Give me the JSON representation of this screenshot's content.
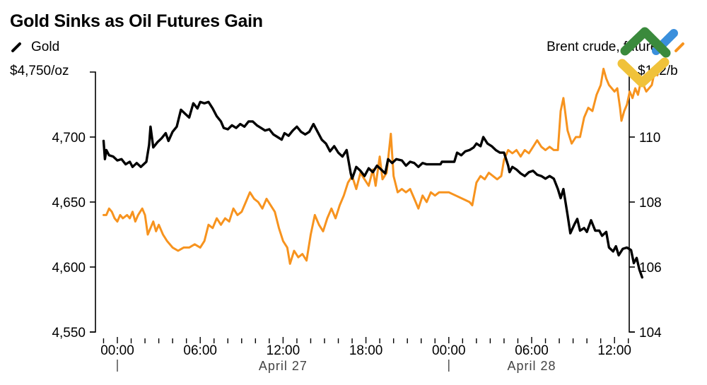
{
  "chart_data": {
    "type": "line",
    "title": "Gold Sinks as Oil Futures Gain",
    "xlabel": "",
    "legend_position": "top",
    "grid": false,
    "x_ticks": [
      {
        "label": "00:00",
        "hour": 0
      },
      {
        "label": "06:00",
        "hour": 6
      },
      {
        "label": "12:00",
        "hour": 12
      },
      {
        "label": "18:00",
        "hour": 18
      },
      {
        "label": "00:00",
        "hour": 24
      },
      {
        "label": "06:00",
        "hour": 30
      },
      {
        "label": "12:00",
        "hour": 36
      }
    ],
    "date_labels": [
      {
        "label": "April 27",
        "hour": 12
      },
      {
        "label": "April 28",
        "hour": 30
      }
    ],
    "date_separators": [
      0,
      24
    ],
    "x_range_hours": [
      -1.3,
      37.6
    ],
    "axes": {
      "left": {
        "label": "Gold",
        "unit_label": "$4,750/oz",
        "ylim": [
          4550,
          4750
        ],
        "ticks": [
          {
            "value": 4550,
            "label": "4,550"
          },
          {
            "value": 4600,
            "label": "4,600"
          },
          {
            "value": 4650,
            "label": "4,650"
          },
          {
            "value": 4700,
            "label": "4,700"
          }
        ]
      },
      "right": {
        "label": "Brent crude, futures",
        "unit_label": "$112/b",
        "ylim": [
          104,
          112
        ],
        "ticks": [
          {
            "value": 104,
            "label": "104"
          },
          {
            "value": 106,
            "label": "106"
          },
          {
            "value": 108,
            "label": "108"
          },
          {
            "value": 110,
            "label": "110"
          }
        ]
      }
    },
    "series": [
      {
        "name": "Gold",
        "axis": "left",
        "color": "#000000",
        "unit": "$/oz",
        "points": [
          [
            -1.0,
            4697
          ],
          [
            -0.9,
            4683
          ],
          [
            -0.8,
            4690
          ],
          [
            -0.6,
            4686
          ],
          [
            -0.3,
            4685
          ],
          [
            0.0,
            4682
          ],
          [
            0.3,
            4683
          ],
          [
            0.6,
            4679
          ],
          [
            0.9,
            4681
          ],
          [
            1.1,
            4677
          ],
          [
            1.4,
            4680
          ],
          [
            1.7,
            4677
          ],
          [
            1.9,
            4679
          ],
          [
            2.1,
            4681
          ],
          [
            2.3,
            4694
          ],
          [
            2.4,
            4708
          ],
          [
            2.6,
            4692
          ],
          [
            2.9,
            4696
          ],
          [
            3.2,
            4699
          ],
          [
            3.5,
            4703
          ],
          [
            3.7,
            4697
          ],
          [
            4.0,
            4704
          ],
          [
            4.3,
            4708
          ],
          [
            4.6,
            4721
          ],
          [
            4.9,
            4718
          ],
          [
            5.2,
            4715
          ],
          [
            5.5,
            4726
          ],
          [
            5.8,
            4722
          ],
          [
            6.0,
            4727
          ],
          [
            6.3,
            4726
          ],
          [
            6.6,
            4727
          ],
          [
            6.9,
            4722
          ],
          [
            7.2,
            4716
          ],
          [
            7.5,
            4712
          ],
          [
            7.7,
            4707
          ],
          [
            8.0,
            4706
          ],
          [
            8.3,
            4709
          ],
          [
            8.6,
            4707
          ],
          [
            8.9,
            4710
          ],
          [
            9.2,
            4708
          ],
          [
            9.5,
            4712
          ],
          [
            9.8,
            4712
          ],
          [
            10.1,
            4709
          ],
          [
            10.4,
            4707
          ],
          [
            10.7,
            4705
          ],
          [
            11.0,
            4706
          ],
          [
            11.3,
            4702
          ],
          [
            11.6,
            4700
          ],
          [
            11.9,
            4698
          ],
          [
            12.1,
            4703
          ],
          [
            12.4,
            4701
          ],
          [
            12.7,
            4705
          ],
          [
            13.0,
            4708
          ],
          [
            13.3,
            4704
          ],
          [
            13.6,
            4702
          ],
          [
            13.9,
            4704
          ],
          [
            14.2,
            4710
          ],
          [
            14.5,
            4704
          ],
          [
            14.8,
            4698
          ],
          [
            15.1,
            4695
          ],
          [
            15.4,
            4689
          ],
          [
            15.7,
            4693
          ],
          [
            16.0,
            4688
          ],
          [
            16.3,
            4685
          ],
          [
            16.6,
            4690
          ],
          [
            16.9,
            4672
          ],
          [
            17.0,
            4668
          ],
          [
            17.3,
            4677
          ],
          [
            17.6,
            4674
          ],
          [
            17.9,
            4670
          ],
          [
            18.2,
            4676
          ],
          [
            18.5,
            4673
          ],
          [
            18.8,
            4678
          ],
          [
            19.1,
            4675
          ],
          [
            19.4,
            4672
          ],
          [
            19.6,
            4683
          ],
          [
            19.9,
            4680
          ],
          [
            20.2,
            4683
          ],
          [
            20.6,
            4682
          ],
          [
            20.9,
            4678
          ],
          [
            21.2,
            4681
          ],
          [
            21.5,
            4680
          ],
          [
            21.8,
            4677
          ],
          [
            22.1,
            4680
          ],
          [
            22.4,
            4679
          ],
          [
            23.0,
            4679
          ],
          [
            23.4,
            4679
          ],
          [
            23.5,
            4681
          ],
          [
            24.0,
            4681
          ],
          [
            24.4,
            4681
          ],
          [
            24.6,
            4688
          ],
          [
            24.9,
            4686
          ],
          [
            25.2,
            4689
          ],
          [
            25.5,
            4690
          ],
          [
            25.8,
            4692
          ],
          [
            26.0,
            4695
          ],
          [
            26.3,
            4693
          ],
          [
            26.5,
            4700
          ],
          [
            26.8,
            4695
          ],
          [
            27.1,
            4693
          ],
          [
            27.4,
            4690
          ],
          [
            27.7,
            4688
          ],
          [
            28.0,
            4688
          ],
          [
            28.3,
            4678
          ],
          [
            28.4,
            4673
          ],
          [
            28.6,
            4677
          ],
          [
            28.9,
            4675
          ],
          [
            29.2,
            4672
          ],
          [
            29.5,
            4670
          ],
          [
            29.8,
            4673
          ],
          [
            30.1,
            4674
          ],
          [
            30.4,
            4671
          ],
          [
            30.7,
            4670
          ],
          [
            31.0,
            4668
          ],
          [
            31.3,
            4670
          ],
          [
            31.6,
            4668
          ],
          [
            31.9,
            4660
          ],
          [
            32.1,
            4653
          ],
          [
            32.3,
            4660
          ],
          [
            32.6,
            4640
          ],
          [
            32.8,
            4626
          ],
          [
            33.1,
            4633
          ],
          [
            33.3,
            4637
          ],
          [
            33.5,
            4628
          ],
          [
            33.8,
            4630
          ],
          [
            34.0,
            4627
          ],
          [
            34.3,
            4636
          ],
          [
            34.6,
            4628
          ],
          [
            34.9,
            4628
          ],
          [
            35.1,
            4624
          ],
          [
            35.4,
            4627
          ],
          [
            35.6,
            4615
          ],
          [
            35.9,
            4612
          ],
          [
            36.1,
            4616
          ],
          [
            36.3,
            4609
          ],
          [
            36.6,
            4614
          ],
          [
            36.9,
            4615
          ],
          [
            37.2,
            4613
          ],
          [
            37.4,
            4603
          ],
          [
            37.6,
            4607
          ],
          [
            37.8,
            4598
          ],
          [
            38.0,
            4592
          ]
        ]
      },
      {
        "name": "Brent crude, futures",
        "axis": "right",
        "color": "#f7931e",
        "unit": "$/b",
        "points": [
          [
            -1.0,
            107.6
          ],
          [
            -0.8,
            107.6
          ],
          [
            -0.6,
            107.8
          ],
          [
            -0.4,
            107.7
          ],
          [
            -0.2,
            107.5
          ],
          [
            0.0,
            107.4
          ],
          [
            0.2,
            107.6
          ],
          [
            0.4,
            107.5
          ],
          [
            0.7,
            107.6
          ],
          [
            0.9,
            107.5
          ],
          [
            1.1,
            107.7
          ],
          [
            1.3,
            107.4
          ],
          [
            1.5,
            107.6
          ],
          [
            1.8,
            107.8
          ],
          [
            2.0,
            107.6
          ],
          [
            2.2,
            107.0
          ],
          [
            2.4,
            107.2
          ],
          [
            2.6,
            107.4
          ],
          [
            2.8,
            107.1
          ],
          [
            3.0,
            107.3
          ],
          [
            3.3,
            107.0
          ],
          [
            3.6,
            106.8
          ],
          [
            4.0,
            106.6
          ],
          [
            4.4,
            106.5
          ],
          [
            4.8,
            106.6
          ],
          [
            5.2,
            106.6
          ],
          [
            5.6,
            106.7
          ],
          [
            6.0,
            106.6
          ],
          [
            6.3,
            106.8
          ],
          [
            6.6,
            107.3
          ],
          [
            6.9,
            107.2
          ],
          [
            7.2,
            107.5
          ],
          [
            7.5,
            107.3
          ],
          [
            7.8,
            107.5
          ],
          [
            8.1,
            107.4
          ],
          [
            8.4,
            107.8
          ],
          [
            8.7,
            107.6
          ],
          [
            9.0,
            107.7
          ],
          [
            9.3,
            108.0
          ],
          [
            9.6,
            108.3
          ],
          [
            9.9,
            108.1
          ],
          [
            10.2,
            108.0
          ],
          [
            10.5,
            107.8
          ],
          [
            10.8,
            108.1
          ],
          [
            11.1,
            107.9
          ],
          [
            11.4,
            107.7
          ],
          [
            11.7,
            107.2
          ],
          [
            12.0,
            106.8
          ],
          [
            12.3,
            106.6
          ],
          [
            12.5,
            106.1
          ],
          [
            12.8,
            106.5
          ],
          [
            13.1,
            106.3
          ],
          [
            13.4,
            106.4
          ],
          [
            13.7,
            106.2
          ],
          [
            14.0,
            107.0
          ],
          [
            14.3,
            107.6
          ],
          [
            14.6,
            107.3
          ],
          [
            14.9,
            107.1
          ],
          [
            15.2,
            107.5
          ],
          [
            15.5,
            107.8
          ],
          [
            15.8,
            107.5
          ],
          [
            16.1,
            107.9
          ],
          [
            16.4,
            108.2
          ],
          [
            16.7,
            108.6
          ],
          [
            17.0,
            108.8
          ],
          [
            17.3,
            108.4
          ],
          [
            17.6,
            108.9
          ],
          [
            17.9,
            108.7
          ],
          [
            18.2,
            108.5
          ],
          [
            18.5,
            109.0
          ],
          [
            18.7,
            108.5
          ],
          [
            19.0,
            109.4
          ],
          [
            19.2,
            108.7
          ],
          [
            19.5,
            108.9
          ],
          [
            19.8,
            110.1
          ],
          [
            20.0,
            108.8
          ],
          [
            20.3,
            108.3
          ],
          [
            20.6,
            108.4
          ],
          [
            20.9,
            108.3
          ],
          [
            21.2,
            108.4
          ],
          [
            21.5,
            108.1
          ],
          [
            21.8,
            107.8
          ],
          [
            22.1,
            108.2
          ],
          [
            22.4,
            108.0
          ],
          [
            22.7,
            108.3
          ],
          [
            23.0,
            108.2
          ],
          [
            23.3,
            108.3
          ],
          [
            23.6,
            108.3
          ],
          [
            24.0,
            108.3
          ],
          [
            24.5,
            108.2
          ],
          [
            25.0,
            108.1
          ],
          [
            25.5,
            108.0
          ],
          [
            25.7,
            107.9
          ],
          [
            26.0,
            108.6
          ],
          [
            26.3,
            108.8
          ],
          [
            26.6,
            108.7
          ],
          [
            26.9,
            108.9
          ],
          [
            27.2,
            108.8
          ],
          [
            27.5,
            108.7
          ],
          [
            27.8,
            108.8
          ],
          [
            28.0,
            109.3
          ],
          [
            28.3,
            109.6
          ],
          [
            28.6,
            109.5
          ],
          [
            28.9,
            109.6
          ],
          [
            29.2,
            109.4
          ],
          [
            29.5,
            109.6
          ],
          [
            29.8,
            109.5
          ],
          [
            30.1,
            109.7
          ],
          [
            30.4,
            109.9
          ],
          [
            30.7,
            109.7
          ],
          [
            31.0,
            109.6
          ],
          [
            31.3,
            109.7
          ],
          [
            31.6,
            109.6
          ],
          [
            31.9,
            109.6
          ],
          [
            32.1,
            110.8
          ],
          [
            32.3,
            111.2
          ],
          [
            32.6,
            110.2
          ],
          [
            32.9,
            109.8
          ],
          [
            33.2,
            110.0
          ],
          [
            33.5,
            110.0
          ],
          [
            33.8,
            110.6
          ],
          [
            34.1,
            110.9
          ],
          [
            34.4,
            110.8
          ],
          [
            34.7,
            111.3
          ],
          [
            35.0,
            111.6
          ],
          [
            35.2,
            112.1
          ],
          [
            35.4,
            111.8
          ],
          [
            35.6,
            111.6
          ],
          [
            35.8,
            111.5
          ],
          [
            36.0,
            111.4
          ],
          [
            36.2,
            111.5
          ],
          [
            36.4,
            110.9
          ],
          [
            36.5,
            110.5
          ],
          [
            36.7,
            110.8
          ],
          [
            36.9,
            111.0
          ],
          [
            37.1,
            111.4
          ],
          [
            37.3,
            111.2
          ],
          [
            37.5,
            111.5
          ],
          [
            37.7,
            111.3
          ],
          [
            37.9,
            111.7
          ],
          [
            38.1,
            111.6
          ],
          [
            38.3,
            111.4
          ],
          [
            38.5,
            111.5
          ],
          [
            38.7,
            111.6
          ],
          [
            38.9,
            112.0
          ],
          [
            39.1,
            111.9
          ]
        ]
      }
    ]
  },
  "header": {
    "title": "Gold Sinks as Oil Futures Gain"
  },
  "legend": {
    "left_label": "Gold",
    "left_color": "#000000",
    "right_label": "Brent crude, futures",
    "right_color": "#f7931e"
  },
  "units": {
    "left": "$4,750/oz",
    "right": "$112/b"
  },
  "logo": {
    "colors": {
      "green": "#3a8a3c",
      "blue": "#3a8fdc",
      "yellow": "#f0c23a"
    }
  }
}
